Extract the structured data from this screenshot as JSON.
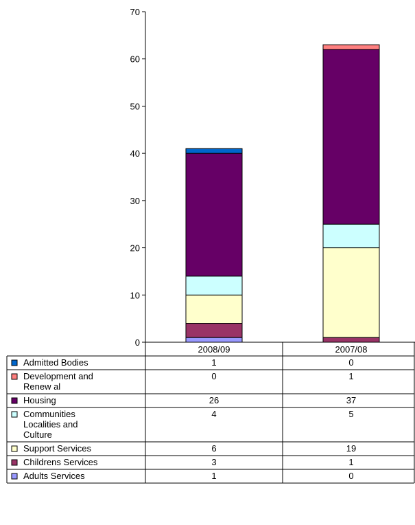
{
  "chart_data": {
    "type": "bar",
    "stacked": true,
    "categories": [
      "2008/09",
      "2007/08"
    ],
    "ylim": [
      0,
      70
    ],
    "yticks": [
      0,
      10,
      20,
      30,
      40,
      50,
      60,
      70
    ],
    "grid": false,
    "legend": "data-table-below",
    "series": [
      {
        "name": "Adults Services",
        "label_lines": [
          "Adults Services"
        ],
        "color": "#9999ff",
        "values": [
          1,
          0
        ]
      },
      {
        "name": "Childrens Services",
        "label_lines": [
          "Childrens Services"
        ],
        "color": "#993366",
        "values": [
          3,
          1
        ]
      },
      {
        "name": "Support Services",
        "label_lines": [
          "Support Services"
        ],
        "color": "#ffffcc",
        "values": [
          6,
          19
        ]
      },
      {
        "name": "Communities Localities and Culture",
        "label_lines": [
          "Communities",
          "Localities and",
          "Culture"
        ],
        "color": "#ccffff",
        "values": [
          4,
          5
        ]
      },
      {
        "name": "Housing",
        "label_lines": [
          "Housing"
        ],
        "color": "#660066",
        "values": [
          26,
          37
        ]
      },
      {
        "name": "Development and Renewal",
        "label_lines": [
          "Development and",
          "Renew al"
        ],
        "color": "#ff8080",
        "values": [
          0,
          1
        ]
      },
      {
        "name": "Admitted Bodies",
        "label_lines": [
          "Admitted Bodies"
        ],
        "color": "#0066cc",
        "values": [
          1,
          0
        ]
      }
    ]
  }
}
